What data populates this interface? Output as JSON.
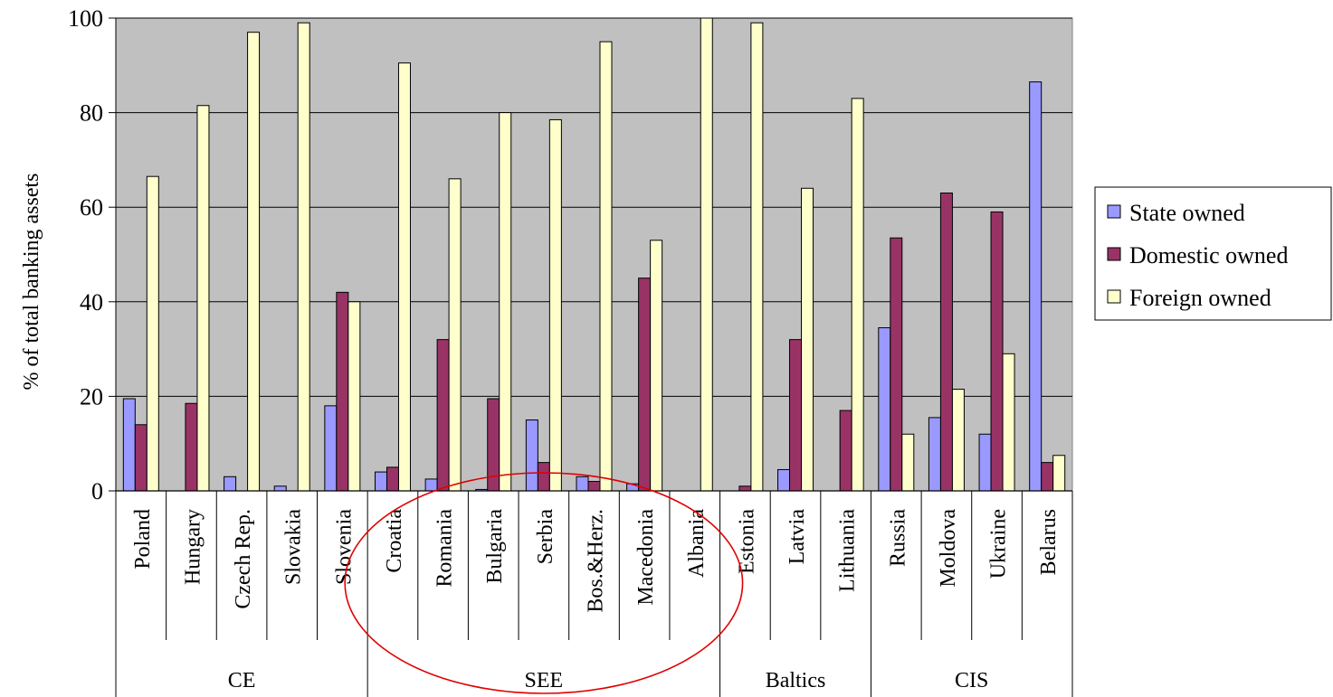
{
  "chart_data": {
    "type": "bar",
    "title": "",
    "ylabel": "% of total banking assets",
    "xlabel": "",
    "ylim": [
      0,
      100
    ],
    "yticks": [
      "0",
      "20",
      "40",
      "60",
      "80",
      "100"
    ],
    "grid": true,
    "legend_position": "right",
    "categories": [
      "Poland",
      "Hungary",
      "Czech Rep.",
      "Slovakia",
      "Slovenia",
      "Croatia",
      "Romania",
      "Bulgaria",
      "Serbia",
      "Bos.&Herz.",
      "Macedonia",
      "Albania",
      "Estonia",
      "Latvia",
      "Lithuania",
      "Russia",
      "Moldova",
      "Ukraine",
      "Belarus"
    ],
    "groups": [
      {
        "label": "CE",
        "count": 5
      },
      {
        "label": "SEE",
        "count": 7
      },
      {
        "label": "Baltics",
        "count": 3
      },
      {
        "label": "CIS",
        "count": 4
      }
    ],
    "series": [
      {
        "name": "State owned",
        "color": "#9999ff",
        "values": [
          19.5,
          0,
          3,
          1,
          18,
          4,
          2.5,
          0.3,
          15,
          3,
          1.5,
          0,
          0,
          4.5,
          0,
          34.5,
          15.5,
          12,
          86.5
        ]
      },
      {
        "name": "Domestic owned",
        "color": "#993366",
        "values": [
          14,
          18.5,
          0,
          0,
          42,
          5,
          32,
          19.5,
          6,
          2,
          45,
          0,
          1,
          32,
          17,
          53.5,
          63,
          59,
          6
        ]
      },
      {
        "name": "Foreign owned",
        "color": "#ffffcc",
        "values": [
          66.5,
          81.5,
          97,
          99,
          40,
          90.5,
          66,
          80,
          78.5,
          95,
          53,
          100,
          99,
          64,
          83,
          12,
          21.5,
          29,
          7.5
        ]
      }
    ],
    "annotation": {
      "shape": "ellipse",
      "color": "#e00000",
      "encloses_group": "SEE"
    },
    "plot_background": "#c0c0c0"
  }
}
